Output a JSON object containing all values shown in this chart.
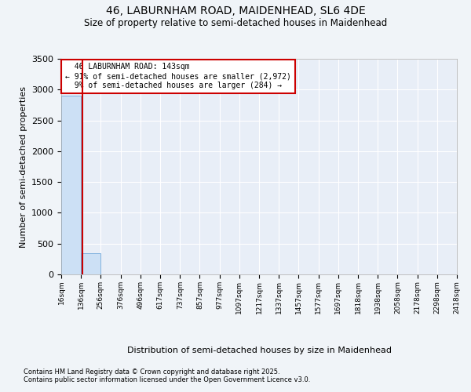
{
  "title_line1": "46, LABURNHAM ROAD, MAIDENHEAD, SL6 4DE",
  "title_line2": "Size of property relative to semi-detached houses in Maidenhead",
  "xlabel": "Distribution of semi-detached houses by size in Maidenhead",
  "ylabel": "Number of semi-detached properties",
  "property_label": "46 LABURNHAM ROAD: 143sqm",
  "pct_smaller": 91,
  "pct_larger": 9,
  "n_smaller": 2972,
  "n_larger": 284,
  "bin_edges": [
    16,
    136,
    256,
    376,
    496,
    617,
    737,
    857,
    977,
    1097,
    1217,
    1337,
    1457,
    1577,
    1697,
    1818,
    1938,
    2058,
    2178,
    2298,
    2418
  ],
  "bar_heights": [
    2900,
    350,
    6,
    2,
    1,
    1,
    0,
    0,
    0,
    0,
    0,
    0,
    0,
    0,
    0,
    0,
    0,
    0,
    0,
    0
  ],
  "bar_color": "#cce0f5",
  "bar_edge_color": "#5b9bd5",
  "vline_color": "#cc0000",
  "vline_x": 143,
  "ylim": [
    0,
    3500
  ],
  "yticks": [
    0,
    500,
    1000,
    1500,
    2000,
    2500,
    3000,
    3500
  ],
  "fig_bg_color": "#f0f4f8",
  "plot_bg_color": "#e8eef7",
  "annotation_box_color": "#cc0000",
  "footer_line1": "Contains HM Land Registry data © Crown copyright and database right 2025.",
  "footer_line2": "Contains public sector information licensed under the Open Government Licence v3.0."
}
